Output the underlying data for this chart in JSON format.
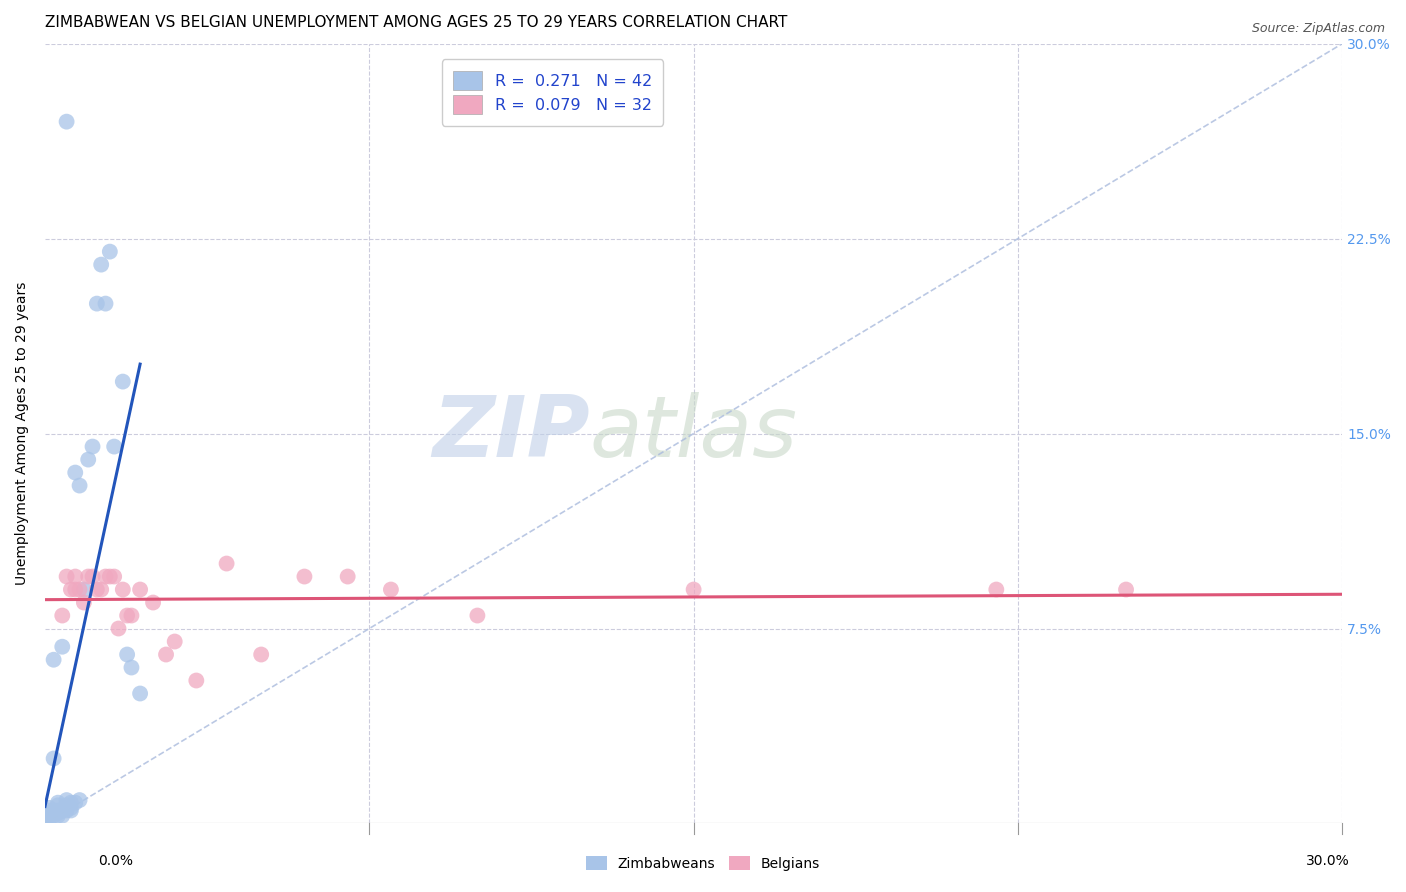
{
  "title": "ZIMBABWEAN VS BELGIAN UNEMPLOYMENT AMONG AGES 25 TO 29 YEARS CORRELATION CHART",
  "source": "Source: ZipAtlas.com",
  "ylabel": "Unemployment Among Ages 25 to 29 years",
  "xlim": [
    0.0,
    0.3
  ],
  "ylim": [
    0.0,
    0.3
  ],
  "zim_color": "#a8c4e8",
  "bel_color": "#f0a8c0",
  "zim_line_color": "#2255bb",
  "bel_line_color": "#dd5577",
  "diag_color": "#aabbdd",
  "grid_color": "#ccccdd",
  "background_color": "#ffffff",
  "watermark_color": "#d0dff0",
  "title_fontsize": 11,
  "source_fontsize": 9,
  "right_tick_color": "#5599ee",
  "zim_x": [
    0.001,
    0.001,
    0.001,
    0.001,
    0.002,
    0.002,
    0.002,
    0.002,
    0.002,
    0.003,
    0.003,
    0.003,
    0.003,
    0.003,
    0.004,
    0.004,
    0.004,
    0.005,
    0.005,
    0.005,
    0.005,
    0.006,
    0.006,
    0.006,
    0.007,
    0.007,
    0.008,
    0.008,
    0.009,
    0.01,
    0.011,
    0.012,
    0.013,
    0.014,
    0.015,
    0.016,
    0.018,
    0.019,
    0.02,
    0.022,
    0.001,
    0.001
  ],
  "zim_y": [
    0.003,
    0.004,
    0.005,
    0.006,
    0.003,
    0.004,
    0.005,
    0.025,
    0.063,
    0.003,
    0.004,
    0.005,
    0.007,
    0.008,
    0.003,
    0.005,
    0.068,
    0.005,
    0.007,
    0.009,
    0.27,
    0.005,
    0.006,
    0.008,
    0.008,
    0.135,
    0.009,
    0.13,
    0.09,
    0.14,
    0.145,
    0.2,
    0.215,
    0.2,
    0.22,
    0.145,
    0.17,
    0.065,
    0.06,
    0.05,
    0.003,
    0.002
  ],
  "bel_x": [
    0.004,
    0.005,
    0.006,
    0.007,
    0.007,
    0.008,
    0.009,
    0.01,
    0.011,
    0.012,
    0.013,
    0.014,
    0.015,
    0.016,
    0.017,
    0.018,
    0.019,
    0.02,
    0.022,
    0.025,
    0.028,
    0.03,
    0.035,
    0.042,
    0.05,
    0.06,
    0.07,
    0.08,
    0.1,
    0.15,
    0.22,
    0.25
  ],
  "bel_y": [
    0.08,
    0.095,
    0.09,
    0.09,
    0.095,
    0.09,
    0.085,
    0.095,
    0.095,
    0.09,
    0.09,
    0.095,
    0.095,
    0.095,
    0.075,
    0.09,
    0.08,
    0.08,
    0.09,
    0.085,
    0.065,
    0.07,
    0.055,
    0.1,
    0.065,
    0.095,
    0.095,
    0.09,
    0.08,
    0.09,
    0.09,
    0.09
  ]
}
